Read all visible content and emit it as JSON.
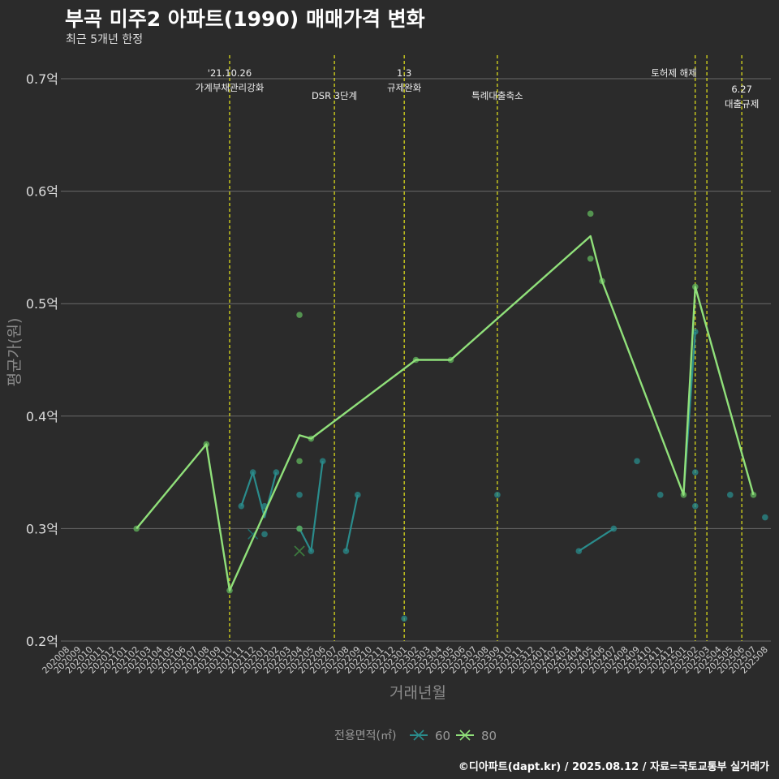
{
  "header": {
    "title": "부곡 미주2 아파트(1990) 매매가격 변화",
    "subtitle": "최근 5개년 한정"
  },
  "footer": {
    "credit": "©디아파트(dapt.kr) / 2025.08.12 / 자료=국토교통부 실거래가"
  },
  "colors": {
    "s60": "#2a8c8c",
    "s80": "#90e07a",
    "event": "#e8e81a",
    "grid": "#6a6a6a",
    "bg": "#2b2b2b"
  },
  "chart_data": {
    "type": "line",
    "title": "부곡 미주2 아파트(1990) 매매가격 변화",
    "xlabel": "거래년월",
    "ylabel": "평균가(원)",
    "ylim": [
      0.2,
      0.7
    ],
    "y_ticks": [
      {
        "v": 0.2,
        "label": "0.2억"
      },
      {
        "v": 0.3,
        "label": "0.3억"
      },
      {
        "v": 0.4,
        "label": "0.4억"
      },
      {
        "v": 0.5,
        "label": "0.5억"
      },
      {
        "v": 0.6,
        "label": "0.6억"
      },
      {
        "v": 0.7,
        "label": "0.7억"
      }
    ],
    "categories": [
      "202008",
      "202009",
      "202010",
      "202011",
      "202012",
      "202101",
      "202102",
      "202103",
      "202104",
      "202105",
      "202106",
      "202107",
      "202108",
      "202109",
      "202110",
      "202111",
      "202112",
      "202201",
      "202202",
      "202203",
      "202204",
      "202205",
      "202206",
      "202207",
      "202208",
      "202209",
      "202210",
      "202211",
      "202212",
      "202301",
      "202302",
      "202303",
      "202304",
      "202305",
      "202306",
      "202307",
      "202308",
      "202309",
      "202310",
      "202311",
      "202312",
      "202401",
      "202402",
      "202403",
      "202404",
      "202405",
      "202406",
      "202407",
      "202408",
      "202409",
      "202410",
      "202411",
      "202412",
      "202501",
      "202502",
      "202503",
      "202504",
      "202505",
      "202506",
      "202507",
      "202508"
    ],
    "legend_title": "전용면적(㎡)",
    "series": [
      {
        "name": "60",
        "color_key": "s60",
        "segments": [
          [
            [
              "202111",
              0.32
            ],
            [
              "202112",
              0.35
            ],
            [
              "202201",
              0.31
            ],
            [
              "202202",
              0.35
            ]
          ],
          [
            [
              "202204",
              0.3
            ],
            [
              "202205",
              0.28
            ],
            [
              "202206",
              0.36
            ]
          ],
          [
            [
              "202208",
              0.28
            ],
            [
              "202209",
              0.33
            ]
          ],
          [
            [
              "202404",
              0.28
            ],
            [
              "202407",
              0.3
            ]
          ],
          [
            [
              "202501",
              0.33
            ],
            [
              "202502",
              0.475
            ]
          ]
        ],
        "points": [
          [
            "202111",
            0.32
          ],
          [
            "202112",
            0.35
          ],
          [
            "202201",
            0.32
          ],
          [
            "202201",
            0.295
          ],
          [
            "202202",
            0.35
          ],
          [
            "202204",
            0.33
          ],
          [
            "202204",
            0.3
          ],
          [
            "202205",
            0.28
          ],
          [
            "202206",
            0.36
          ],
          [
            "202208",
            0.28
          ],
          [
            "202209",
            0.33
          ],
          [
            "202301",
            0.22
          ],
          [
            "202309",
            0.33
          ],
          [
            "202404",
            0.28
          ],
          [
            "202407",
            0.3
          ],
          [
            "202409",
            0.36
          ],
          [
            "202411",
            0.33
          ],
          [
            "202502",
            0.35
          ],
          [
            "202502",
            0.32
          ],
          [
            "202502",
            0.475
          ],
          [
            "202505",
            0.33
          ],
          [
            "202508",
            0.31
          ]
        ],
        "crosses": [
          [
            "202112",
            0.295
          ],
          [
            "202204",
            0.28
          ]
        ]
      },
      {
        "name": "80",
        "color_key": "s80",
        "line": [
          [
            "202102",
            0.3
          ],
          [
            "202108",
            0.375
          ],
          [
            "202110",
            0.245
          ],
          [
            "202204",
            0.383
          ],
          [
            "202205",
            0.38
          ],
          [
            "202302",
            0.45
          ],
          [
            "202305",
            0.45
          ],
          [
            "202405",
            0.56
          ],
          [
            "202406",
            0.52
          ],
          [
            "202501",
            0.33
          ],
          [
            "202502",
            0.515
          ],
          [
            "202507",
            0.33
          ]
        ],
        "points": [
          [
            "202102",
            0.3
          ],
          [
            "202108",
            0.375
          ],
          [
            "202110",
            0.245
          ],
          [
            "202204",
            0.49
          ],
          [
            "202204",
            0.36
          ],
          [
            "202204",
            0.3
          ],
          [
            "202205",
            0.38
          ],
          [
            "202302",
            0.45
          ],
          [
            "202305",
            0.45
          ],
          [
            "202405",
            0.58
          ],
          [
            "202405",
            0.54
          ],
          [
            "202406",
            0.52
          ],
          [
            "202501",
            0.33
          ],
          [
            "202502",
            0.515
          ],
          [
            "202507",
            0.33
          ]
        ],
        "crosses": [
          [
            "202204",
            0.28
          ]
        ]
      }
    ],
    "events": [
      {
        "month": "202110",
        "lines": [
          "'21.10.26",
          "가계부채관리강화"
        ],
        "row": 0
      },
      {
        "month": "202207",
        "lines": [
          "DSR 3단계"
        ],
        "row": 1
      },
      {
        "month": "202301",
        "lines": [
          "1.3",
          "규제완화"
        ],
        "row": 0
      },
      {
        "month": "202309",
        "lines": [
          "특례대출축소"
        ],
        "row": 1
      },
      {
        "month": "202502",
        "lines": [
          "토허제 해제"
        ],
        "row": 0,
        "anchor": "end"
      },
      {
        "month": "202503",
        "lines": [],
        "row": 0
      },
      {
        "month": "202506",
        "lines": [
          "6.27",
          "대출규제"
        ],
        "row": 1
      }
    ]
  }
}
